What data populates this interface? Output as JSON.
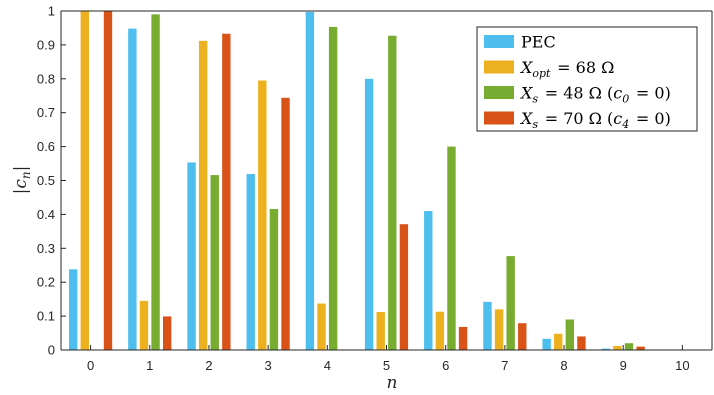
{
  "chart_data": {
    "type": "bar",
    "xlabel": "n",
    "ylabel": "|c_n|",
    "x": [
      0,
      1,
      2,
      3,
      4,
      5,
      6,
      7,
      8,
      9,
      10
    ],
    "xticks": [
      "0",
      "1",
      "2",
      "3",
      "4",
      "5",
      "6",
      "7",
      "8",
      "9",
      "10"
    ],
    "ylim": [
      0,
      1
    ],
    "yticks": [
      "0",
      "0.1",
      "0.2",
      "0.3",
      "0.4",
      "0.5",
      "0.6",
      "0.7",
      "0.8",
      "0.9",
      "1"
    ],
    "grid": false,
    "legend_position": "top-right",
    "series": [
      {
        "name": "PEC",
        "color": "#4DBEEE",
        "values": [
          0.238,
          0.948,
          0.553,
          0.519,
          0.997,
          0.8,
          0.41,
          0.142,
          0.033,
          0.004,
          0.0
        ]
      },
      {
        "name": "X_opt = 68 Ω",
        "color": "#EDB120",
        "values": [
          1.0,
          0.145,
          0.912,
          0.795,
          0.137,
          0.112,
          0.113,
          0.12,
          0.048,
          0.012,
          0.0
        ]
      },
      {
        "name": "X_s = 48 Ω (c_0 = 0)",
        "color": "#77AC30",
        "values": [
          0.0,
          0.99,
          0.516,
          0.416,
          0.953,
          0.927,
          0.6,
          0.277,
          0.09,
          0.02,
          0.0
        ]
      },
      {
        "name": "X_s = 70 Ω (c_4 = 0)",
        "color": "#D95319",
        "values": [
          1.0,
          0.099,
          0.933,
          0.744,
          0.0,
          0.371,
          0.068,
          0.079,
          0.04,
          0.01,
          0.0
        ]
      }
    ]
  }
}
